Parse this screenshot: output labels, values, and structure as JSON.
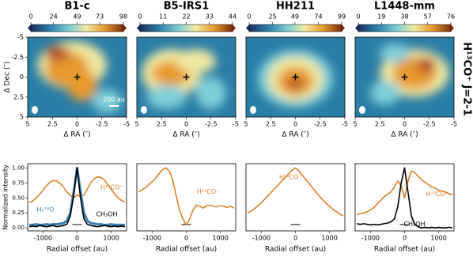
{
  "figure_label": "H¹³CO⁺ J=2-1",
  "chart_data": [
    {
      "type": "heatmap",
      "title": "B1-c",
      "xlabel": "Δ RA (″)",
      "ylabel": "Δ Dec (″)",
      "xlim": [
        5,
        -5
      ],
      "ylim": [
        5,
        -5
      ],
      "xticks": [
        5,
        2.5,
        0,
        -2.5,
        -5
      ],
      "yticks": [
        -5,
        -2.5,
        0,
        2.5,
        5
      ],
      "clim": [
        0,
        98
      ],
      "cticks": [
        0,
        24,
        49,
        73,
        98
      ],
      "scale_bar_label": "200 au"
    },
    {
      "type": "heatmap",
      "title": "B5-IRS1",
      "xlabel": "Δ RA (″)",
      "xlim": [
        5,
        -5
      ],
      "ylim": [
        5,
        -5
      ],
      "xticks": [
        5,
        2.5,
        0,
        -2.5,
        -5
      ],
      "clim": [
        0,
        44
      ],
      "cticks": [
        0,
        11,
        22,
        33,
        44
      ]
    },
    {
      "type": "heatmap",
      "title": "HH211",
      "xlabel": "Δ RA (″)",
      "xlim": [
        5,
        -5
      ],
      "ylim": [
        5,
        -5
      ],
      "xticks": [
        5,
        2.5,
        0,
        -2.5,
        -5
      ],
      "clim": [
        0,
        99
      ],
      "cticks": [
        0,
        25,
        49,
        74,
        99
      ]
    },
    {
      "type": "heatmap",
      "title": "L1448-mm",
      "xlabel": "Δ RA (″)",
      "xlim": [
        5,
        -5
      ],
      "ylim": [
        5,
        -5
      ],
      "xticks": [
        5,
        2.5,
        0,
        -2.5,
        -5
      ],
      "clim": [
        0,
        76
      ],
      "cticks": [
        0,
        19,
        38,
        57,
        76
      ]
    },
    {
      "type": "line",
      "xlabel": "Radial offset (au)",
      "ylabel": "Normalized intensity",
      "xlim": [
        -1450,
        1450
      ],
      "ylim": [
        -0.05,
        1.07
      ],
      "xticks": [
        -1000,
        0,
        1000
      ],
      "yticks": [
        {
          "value": 0,
          "label": "0.00"
        },
        {
          "value": 0.25,
          "label": "0.25"
        },
        {
          "value": 0.5,
          "label": "0.50"
        },
        {
          "value": 0.75,
          "label": "0.75"
        },
        {
          "value": 1,
          "label": "1.00"
        }
      ],
      "x": [
        -1400,
        -1300,
        -1200,
        -1100,
        -1000,
        -900,
        -800,
        -700,
        -600,
        -500,
        -400,
        -300,
        -200,
        -100,
        0,
        100,
        200,
        300,
        400,
        500,
        600,
        700,
        800,
        900,
        1000,
        1100,
        1200,
        1300,
        1400
      ],
      "series": [
        {
          "name": "H¹³CO⁺",
          "color": "#d9822b",
          "values": [
            0.42,
            0.45,
            0.5,
            0.56,
            0.63,
            0.7,
            0.76,
            0.79,
            0.78,
            0.74,
            0.68,
            0.6,
            0.54,
            0.5,
            0.55,
            0.52,
            0.55,
            0.65,
            0.75,
            0.82,
            0.85,
            0.84,
            0.8,
            0.72,
            0.64,
            0.57,
            0.5,
            0.46,
            0.43
          ]
        },
        {
          "name": "H₂¹⁸O",
          "color": "#3b7fae",
          "values": [
            0.05,
            0.05,
            0.06,
            0.05,
            0.05,
            0.06,
            0.05,
            0.06,
            0.06,
            0.07,
            0.08,
            0.12,
            0.25,
            0.6,
            1.0,
            0.6,
            0.25,
            0.12,
            0.08,
            0.07,
            0.06,
            0.06,
            0.05,
            0.05,
            0.06,
            0.05,
            0.05,
            0.05,
            0.05
          ]
        },
        {
          "name": "CH₃OH",
          "color": "#000000",
          "values": [
            0.02,
            0.03,
            0.02,
            0.04,
            0.03,
            0.02,
            0.03,
            0.04,
            0.02,
            0.03,
            0.04,
            0.06,
            0.2,
            0.55,
            1.0,
            0.5,
            0.15,
            0.06,
            0.04,
            0.03,
            0.02,
            0.03,
            0.04,
            0.03,
            0.02,
            0.03,
            0.02,
            0.03,
            0.02
          ]
        }
      ]
    },
    {
      "type": "line",
      "xlabel": "Radial offset (au)",
      "xlim": [
        -1450,
        1450
      ],
      "ylim": [
        -0.05,
        1.07
      ],
      "xticks": [
        -1000,
        0,
        1000
      ],
      "x": [
        -1400,
        -1300,
        -1200,
        -1100,
        -1000,
        -900,
        -800,
        -700,
        -600,
        -500,
        -400,
        -300,
        -200,
        -100,
        0,
        100,
        200,
        300,
        400,
        500,
        600,
        700,
        800,
        900,
        1000,
        1100,
        1200,
        1300,
        1400
      ],
      "series": [
        {
          "name": "H¹³CO⁺",
          "color": "#d9822b",
          "values": [
            0.6,
            0.63,
            0.67,
            0.72,
            0.77,
            0.83,
            0.9,
            0.97,
            1.0,
            0.95,
            0.8,
            0.55,
            0.3,
            0.15,
            0.05,
            0.15,
            0.3,
            0.38,
            0.36,
            0.33,
            0.37,
            0.38,
            0.36,
            0.35,
            0.37,
            0.36,
            0.34,
            0.36,
            0.33
          ]
        }
      ]
    },
    {
      "type": "line",
      "xlabel": "Radial offset (au)",
      "xlim": [
        -1450,
        1450
      ],
      "ylim": [
        -0.05,
        1.07
      ],
      "xticks": [
        -1000,
        0,
        1000
      ],
      "x": [
        -1400,
        -1300,
        -1200,
        -1100,
        -1000,
        -900,
        -800,
        -700,
        -600,
        -500,
        -400,
        -300,
        -200,
        -100,
        0,
        100,
        200,
        300,
        400,
        500,
        600,
        700,
        800,
        900,
        1000,
        1100,
        1200,
        1300,
        1400
      ],
      "series": [
        {
          "name": "H¹³CO⁺",
          "color": "#d9822b",
          "values": [
            0.25,
            0.28,
            0.32,
            0.37,
            0.42,
            0.48,
            0.54,
            0.6,
            0.66,
            0.72,
            0.78,
            0.84,
            0.9,
            0.96,
            1.0,
            0.95,
            0.88,
            0.81,
            0.74,
            0.67,
            0.6,
            0.53,
            0.47,
            0.41,
            0.36,
            0.31,
            0.27,
            0.23,
            0.2
          ]
        }
      ]
    },
    {
      "type": "line",
      "xlabel": "Radial offset (au)",
      "xlim": [
        -1450,
        1450
      ],
      "ylim": [
        -0.05,
        1.07
      ],
      "xticks": [
        -1000,
        0,
        1000
      ],
      "x": [
        -1400,
        -1300,
        -1200,
        -1100,
        -1000,
        -900,
        -800,
        -700,
        -600,
        -500,
        -400,
        -300,
        -200,
        -100,
        0,
        100,
        200,
        300,
        400,
        500,
        600,
        700,
        800,
        900,
        1000,
        1100,
        1200,
        1300,
        1400
      ],
      "series": [
        {
          "name": "H¹³CO⁺",
          "color": "#d9822b",
          "values": [
            0.22,
            0.24,
            0.25,
            0.27,
            0.3,
            0.34,
            0.4,
            0.46,
            0.52,
            0.56,
            0.6,
            0.68,
            0.78,
            0.7,
            0.5,
            0.78,
            0.95,
            0.92,
            0.86,
            0.8,
            0.76,
            0.72,
            0.68,
            0.66,
            0.63,
            0.61,
            0.6,
            0.57,
            0.55
          ]
        },
        {
          "name": "CH₃OH",
          "color": "#000000",
          "values": [
            0.07,
            0.06,
            0.07,
            0.06,
            0.05,
            0.06,
            0.05,
            0.06,
            0.07,
            0.08,
            0.1,
            0.15,
            0.35,
            0.75,
            1.0,
            0.6,
            0.2,
            0.06,
            0.02,
            0.0,
            0.01,
            0.0,
            0.01,
            0.0,
            0.01,
            0.0,
            0.0,
            0.01,
            0.0
          ]
        }
      ]
    }
  ]
}
